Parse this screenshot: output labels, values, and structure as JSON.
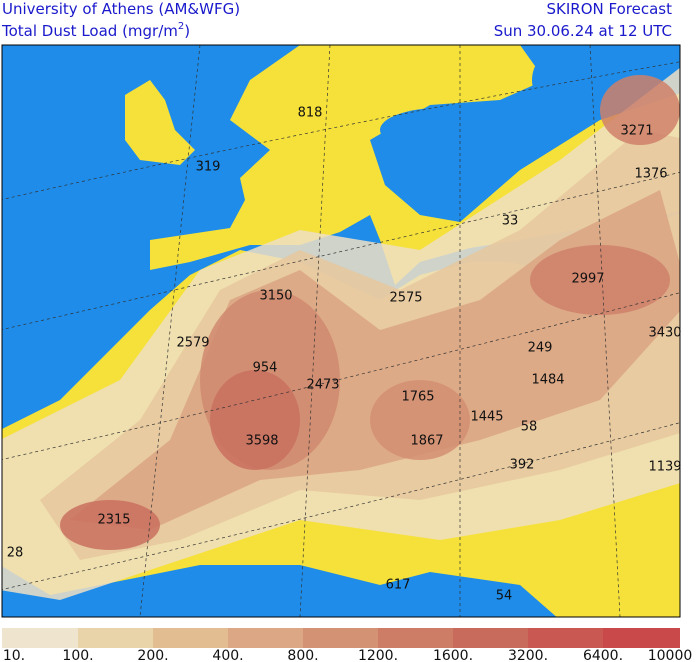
{
  "header": {
    "left_line1": "University of Athens (AM&WFG)",
    "left_line2": "Total Dust Load (mgr/m",
    "left_line2_sup": "2",
    "left_line2_end": ")",
    "right_line1": "SKIRON Forecast",
    "right_line2": "Sun 30.06.24 at 12 UTC"
  },
  "map": {
    "labels": [
      "818",
      "319",
      "3271",
      "1376",
      "33",
      "2997",
      "3150",
      "2575",
      "2579",
      "3430",
      "249",
      "954",
      "2473",
      "1484",
      "1765",
      "1445",
      "58",
      "3598",
      "1867",
      "392",
      "1139",
      "2315",
      "28",
      "617",
      "54"
    ]
  },
  "colorbar": {
    "labels": [
      "10.",
      "100.",
      "200.",
      "400.",
      "800.",
      "1200.",
      "1600.",
      "3200.",
      "6400.",
      "10000"
    ]
  }
}
